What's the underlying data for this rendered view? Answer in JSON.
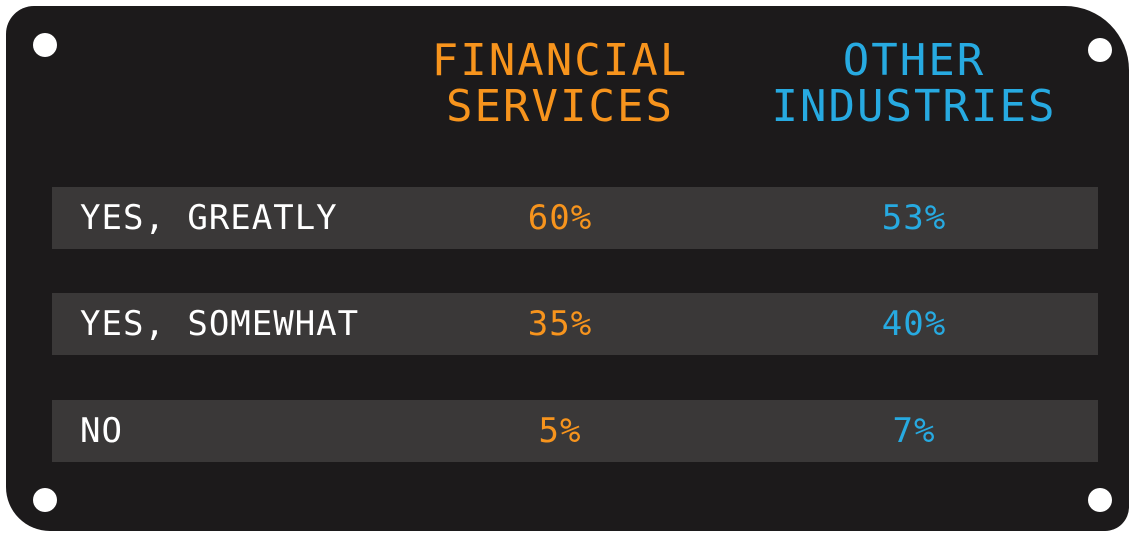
{
  "table": {
    "columns": [
      "FINANCIAL SERVICES",
      "OTHER INDUSTRIES"
    ],
    "rows": [
      [
        "YES, GREATLY",
        "60%",
        "53%"
      ],
      [
        "YES, SOMEWHAT",
        "35%",
        "40%"
      ],
      [
        "NO",
        "5%",
        "7%"
      ]
    ]
  }
}
